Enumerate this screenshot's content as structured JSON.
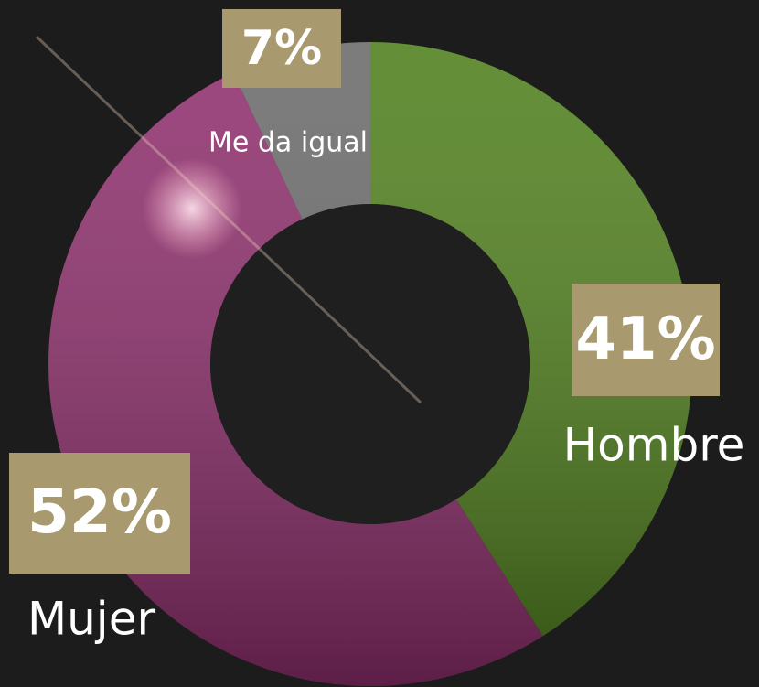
{
  "chart_data": {
    "type": "donut",
    "categories": [
      "Hombre",
      "Mujer",
      "Me da igual"
    ],
    "values": [
      41,
      52,
      7
    ],
    "value_labels": [
      "41%",
      "52%",
      "7%"
    ],
    "colors": [
      "#4f7f1c",
      "#8e2e6c",
      "#6a6a6a"
    ]
  }
}
